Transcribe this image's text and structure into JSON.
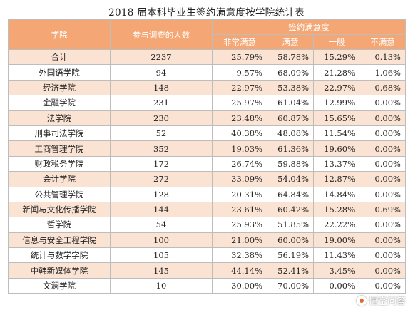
{
  "title": "2018 届本科毕业生签约满意度按学院统计表",
  "header": {
    "college": "学院",
    "count": "参与调查的人数",
    "group": "签约满意度",
    "cols": [
      "非常满意",
      "满意",
      "一般",
      "不满意"
    ]
  },
  "rows": [
    {
      "college": "合计",
      "count": "2237",
      "vals": [
        "25.79%",
        "58.78%",
        "15.29%",
        "0.13%"
      ]
    },
    {
      "college": "外国语学院",
      "count": "94",
      "vals": [
        "9.57%",
        "68.09%",
        "21.28%",
        "1.06%"
      ]
    },
    {
      "college": "经济学院",
      "count": "148",
      "vals": [
        "22.97%",
        "53.38%",
        "22.97%",
        "0.68%"
      ]
    },
    {
      "college": "金融学院",
      "count": "231",
      "vals": [
        "25.97%",
        "61.04%",
        "12.99%",
        "0.00%"
      ]
    },
    {
      "college": "法学院",
      "count": "230",
      "vals": [
        "23.48%",
        "60.87%",
        "15.65%",
        "0.00%"
      ]
    },
    {
      "college": "刑事司法学院",
      "count": "52",
      "vals": [
        "40.38%",
        "48.08%",
        "11.54%",
        "0.00%"
      ]
    },
    {
      "college": "工商管理学院",
      "count": "352",
      "vals": [
        "19.03%",
        "61.36%",
        "19.60%",
        "0.00%"
      ]
    },
    {
      "college": "财政税务学院",
      "count": "172",
      "vals": [
        "26.74%",
        "59.88%",
        "13.37%",
        "0.00%"
      ]
    },
    {
      "college": "会计学院",
      "count": "272",
      "vals": [
        "33.09%",
        "54.04%",
        "12.87%",
        "0.00%"
      ]
    },
    {
      "college": "公共管理学院",
      "count": "128",
      "vals": [
        "20.31%",
        "64.84%",
        "14.84%",
        "0.00%"
      ]
    },
    {
      "college": "新闻与文化传播学院",
      "count": "144",
      "vals": [
        "23.61%",
        "60.42%",
        "15.28%",
        "0.69%"
      ]
    },
    {
      "college": "哲学院",
      "count": "54",
      "vals": [
        "25.93%",
        "51.85%",
        "22.22%",
        "0.00%"
      ]
    },
    {
      "college": "信息与安全工程学院",
      "count": "100",
      "vals": [
        "21.00%",
        "60.00%",
        "19.00%",
        "0.00%"
      ]
    },
    {
      "college": "统计与数学学院",
      "count": "105",
      "vals": [
        "32.38%",
        "56.19%",
        "11.43%",
        "0.00%"
      ]
    },
    {
      "college": "中韩新媒体学院",
      "count": "145",
      "vals": [
        "44.14%",
        "52.41%",
        "3.45%",
        "0.00%"
      ]
    },
    {
      "college": "文澜学院",
      "count": "10",
      "vals": [
        "30.00%",
        "70.00%",
        "0.00%",
        "0.00%"
      ]
    }
  ],
  "watermark": "悟空问答",
  "colors": {
    "header_bg": "#f4a774",
    "stripe_bg": "#fbe3d3"
  }
}
